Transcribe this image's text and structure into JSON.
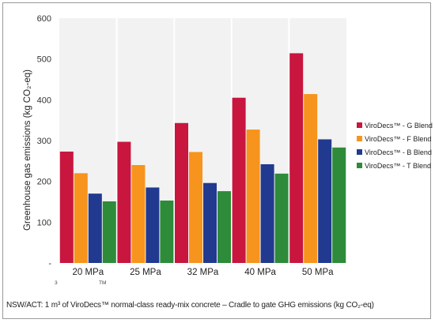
{
  "chart_data": {
    "type": "bar",
    "title": "",
    "xlabel": "",
    "ylabel": "Greenhouse gas emissions (kg CO₂-eq)",
    "ylim": [
      0,
      600
    ],
    "yticks": [
      "-",
      "100",
      "200",
      "300",
      "400",
      "500",
      "600"
    ],
    "categories": [
      "20 MPa",
      "25 MPa",
      "32 MPa",
      "40 MPa",
      "50 MPa"
    ],
    "series": [
      {
        "name": "ViroDecs™ - G Blend",
        "color": "#c8163f",
        "values": [
          273,
          297,
          343,
          405,
          514
        ]
      },
      {
        "name": "ViroDecs™ - F Blend",
        "color": "#f7941d",
        "values": [
          220,
          240,
          272,
          327,
          414
        ]
      },
      {
        "name": "ViroDecs™ - B Blend",
        "color": "#213a8f",
        "values": [
          170,
          185,
          196,
          242,
          303
        ]
      },
      {
        "name": "ViroDecs™ - T Blend",
        "color": "#2e8b3a",
        "values": [
          151,
          153,
          176,
          219,
          283
        ]
      }
    ],
    "grid": "vertical-columns",
    "legend": "right"
  },
  "footnote_left": "3",
  "footnote_right": "TM",
  "caption": "NSW/ACT: 1 m³ of ViroDecs™ normal-class ready-mix concrete – Cradle to gate GHG emissions (kg CO₂-eq)"
}
